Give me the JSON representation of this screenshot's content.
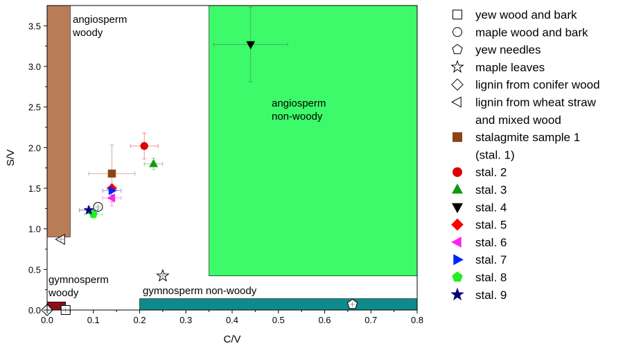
{
  "chart_data": {
    "type": "scatter",
    "xlabel": "C/V",
    "ylabel": "S/V",
    "xlim": [
      0,
      0.8
    ],
    "ylim": [
      0,
      3.75
    ],
    "xticks": [
      "0.0",
      "0.1",
      "0.2",
      "0.3",
      "0.4",
      "0.5",
      "0.6",
      "0.7",
      "0.8"
    ],
    "yticks": [
      "0.0",
      "0.5",
      "1.0",
      "1.5",
      "2.0",
      "2.5",
      "3.0",
      "3.5"
    ],
    "xtick_values": [
      0,
      0.1,
      0.2,
      0.3,
      0.4,
      0.5,
      0.6,
      0.7,
      0.8
    ],
    "ytick_values": [
      0,
      0.5,
      1.0,
      1.5,
      2.0,
      2.5,
      3.0,
      3.5
    ],
    "legend_position": "right",
    "regions": [
      {
        "name": "angiosperm-woody",
        "label": [
          "angiosperm",
          "woody"
        ],
        "x": [
          0,
          0.05
        ],
        "y": [
          0.9,
          3.75
        ],
        "color": "#b87c57"
      },
      {
        "name": "angiosperm-non-woody",
        "label": [
          "angiosperm",
          "non-woody"
        ],
        "x": [
          0.35,
          0.8
        ],
        "y": [
          0.42,
          3.75
        ],
        "color": "#3dfa6a"
      },
      {
        "name": "gymnosperm-woody",
        "label": [
          "gymnosperm",
          "woody"
        ],
        "x": [
          0,
          0.04
        ],
        "y": [
          0,
          0.1
        ],
        "color": "#8b0f1a"
      },
      {
        "name": "gymnosperm-non-woody",
        "label": [
          "gymnosperm non-woody"
        ],
        "x": [
          0.2,
          0.8
        ],
        "y": [
          0,
          0.14
        ],
        "color": "#0e8a8a"
      }
    ],
    "reference": [
      {
        "name": "yew wood and bark",
        "marker": "square",
        "points": [
          {
            "x": 0.04,
            "y": 0.0
          }
        ]
      },
      {
        "name": "maple wood and bark",
        "marker": "circle",
        "points": [
          {
            "x": 0.11,
            "y": 1.27
          }
        ]
      },
      {
        "name": "yew needles",
        "marker": "pentagon",
        "points": [
          {
            "x": 0.66,
            "y": 0.07
          }
        ]
      },
      {
        "name": "maple leaves",
        "marker": "star",
        "points": [
          {
            "x": 0.25,
            "y": 0.42
          }
        ]
      },
      {
        "name": "lignin from conifer wood",
        "marker": "diamond",
        "points": [
          {
            "x": 0.0,
            "y": 0.0
          }
        ]
      },
      {
        "name": "lignin from wheat straw and mixed wood",
        "marker": "triangle-left",
        "points": [
          {
            "x": 0.03,
            "y": 0.87
          }
        ]
      }
    ],
    "series": [
      {
        "name": "stalagmite sample 1 (stal. 1)",
        "marker": "square",
        "color": "#8b4513",
        "x": 0.14,
        "y": 1.68,
        "xerr": 0.05,
        "yerr": 0.35
      },
      {
        "name": "stal. 2",
        "marker": "circle",
        "color": "#dd0000",
        "x": 0.21,
        "y": 2.02,
        "xerr": 0.03,
        "yerr": 0.16
      },
      {
        "name": "stal. 3",
        "marker": "triangle-up",
        "color": "#119911",
        "x": 0.23,
        "y": 1.8,
        "xerr": 0.02,
        "yerr": 0.07
      },
      {
        "name": "stal. 4",
        "marker": "triangle-down",
        "color": "#000000",
        "x": 0.44,
        "y": 3.27,
        "xerr": 0.08,
        "yerr": 0.46
      },
      {
        "name": "stal. 5",
        "marker": "diamond",
        "color": "#ff0000",
        "x": 0.14,
        "y": 1.5,
        "xerr": 0.01,
        "yerr": 0.05
      },
      {
        "name": "stal. 6",
        "marker": "triangle-left",
        "color": "#ff22ee",
        "x": 0.14,
        "y": 1.38,
        "xerr": 0.02,
        "yerr": 0.1
      },
      {
        "name": "stal. 7",
        "marker": "triangle-right",
        "color": "#0022ff",
        "x": 0.14,
        "y": 1.47,
        "xerr": 0.02,
        "yerr": 0.06
      },
      {
        "name": "stal. 8",
        "marker": "pentagon",
        "color": "#22ee22",
        "x": 0.1,
        "y": 1.18,
        "xerr": 0.02,
        "yerr": 0.06
      },
      {
        "name": "stal. 9",
        "marker": "star",
        "color": "#000080",
        "x": 0.09,
        "y": 1.23,
        "xerr": 0.02,
        "yerr": 0.04
      }
    ],
    "legend": [
      {
        "label": "yew wood and bark",
        "marker": "square",
        "color": "#000000",
        "filled": false
      },
      {
        "label": "maple wood and bark",
        "marker": "circle",
        "color": "#000000",
        "filled": false
      },
      {
        "label": "yew needles",
        "marker": "pentagon",
        "color": "#000000",
        "filled": false
      },
      {
        "label": "maple leaves",
        "marker": "star",
        "color": "#000000",
        "filled": false
      },
      {
        "label": "lignin from conifer wood",
        "marker": "diamond",
        "color": "#000000",
        "filled": false
      },
      {
        "label": "lignin from wheat straw",
        "marker": "triangle-left",
        "color": "#000000",
        "filled": false
      },
      {
        "label": "and mixed wood",
        "marker": "none",
        "color": "#000000",
        "filled": false
      },
      {
        "label": "stalagmite sample 1",
        "marker": "square",
        "color": "#8b4513",
        "filled": true
      },
      {
        "label": "(stal. 1)",
        "marker": "none",
        "color": "#000000",
        "filled": false
      },
      {
        "label": "stal. 2",
        "marker": "circle",
        "color": "#dd0000",
        "filled": true
      },
      {
        "label": "stal. 3",
        "marker": "triangle-up",
        "color": "#119911",
        "filled": true
      },
      {
        "label": "stal. 4",
        "marker": "triangle-down",
        "color": "#000000",
        "filled": true
      },
      {
        "label": "stal. 5",
        "marker": "diamond",
        "color": "#ff0000",
        "filled": true
      },
      {
        "label": "stal. 6",
        "marker": "triangle-left",
        "color": "#ff22ee",
        "filled": true
      },
      {
        "label": "stal. 7",
        "marker": "triangle-right",
        "color": "#0022ff",
        "filled": true
      },
      {
        "label": "stal. 8",
        "marker": "pentagon",
        "color": "#22ee22",
        "filled": true
      },
      {
        "label": "stal. 9",
        "marker": "star",
        "color": "#000080",
        "filled": true
      }
    ]
  }
}
